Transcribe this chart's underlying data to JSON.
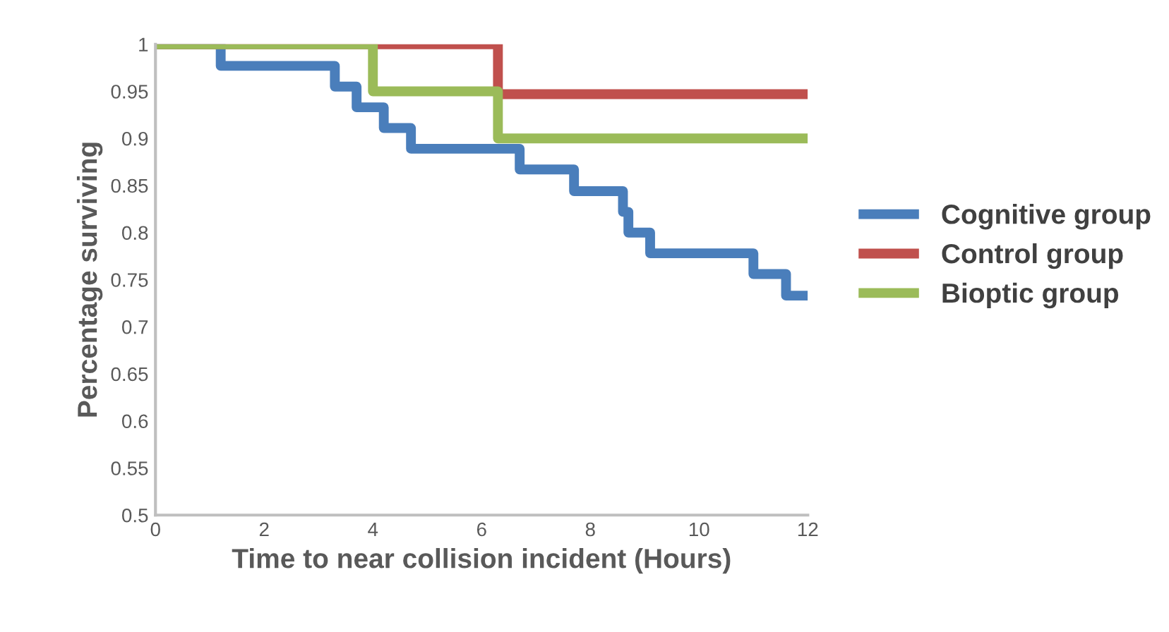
{
  "chart_data": {
    "type": "step",
    "xlabel": "Time to near collision incident (Hours)",
    "ylabel": "Percentage surviving",
    "xlim": [
      0,
      12
    ],
    "xticks": [
      0,
      2,
      4,
      6,
      8,
      10,
      12
    ],
    "ylim": [
      0.5,
      1
    ],
    "yticks": [
      0.5,
      0.55,
      0.6,
      0.65,
      0.7,
      0.75,
      0.8,
      0.85,
      0.9,
      0.95,
      1
    ],
    "grid": false,
    "legend": "right",
    "line_style": "solid",
    "marker": "none",
    "series": [
      {
        "name": "Cognitive group",
        "color": "#4a7ebb",
        "x": [
          0,
          1.2,
          3.3,
          3.7,
          4.2,
          4.7,
          6.7,
          7.7,
          8.6,
          8.7,
          9.1,
          11.0,
          11.6,
          12
        ],
        "values": [
          1,
          0.977,
          0.955,
          0.933,
          0.911,
          0.889,
          0.867,
          0.844,
          0.822,
          0.8,
          0.778,
          0.756,
          0.733,
          0.733
        ]
      },
      {
        "name": "Control group",
        "color": "#c0504d",
        "x": [
          0,
          6.3,
          12
        ],
        "values": [
          1,
          0.947,
          0.947
        ]
      },
      {
        "name": "Bioptic group",
        "color": "#9bbb59",
        "x": [
          0,
          4.0,
          6.3,
          12
        ],
        "values": [
          1,
          0.95,
          0.9,
          0.9
        ]
      }
    ]
  }
}
